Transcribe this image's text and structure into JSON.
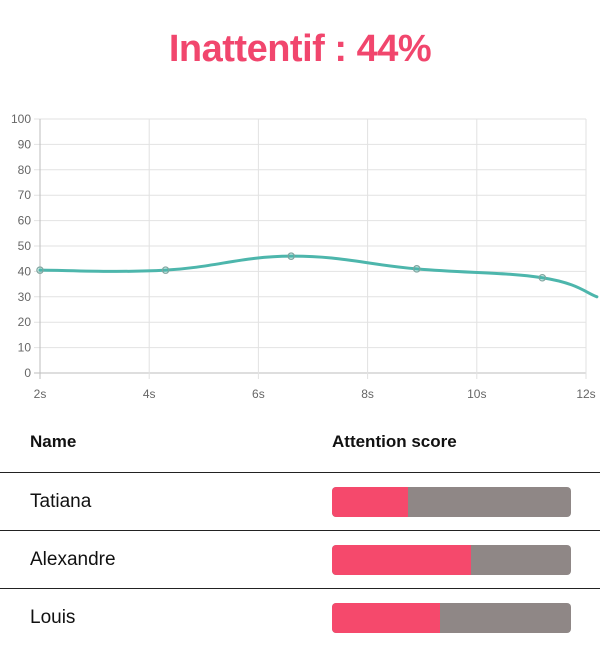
{
  "headline": "Inattentif : 44%",
  "colors": {
    "accent": "#f1466d",
    "line": "#4db6ac",
    "bar_fill": "#f5496c",
    "bar_track": "#8f8786"
  },
  "chart_data": {
    "type": "line",
    "x_ticks": [
      "2s",
      "4s",
      "6s",
      "8s",
      "10s",
      "12s"
    ],
    "y_ticks": [
      "0",
      "10",
      "20",
      "30",
      "40",
      "50",
      "60",
      "70",
      "80",
      "90",
      "100"
    ],
    "ylim": [
      0,
      100
    ],
    "xlim": [
      2,
      12
    ],
    "grid": true,
    "legend": false,
    "series": [
      {
        "x": [
          2,
          4.3,
          6.6,
          8.9,
          11.2,
          12.2
        ],
        "y": [
          40.5,
          40.5,
          46,
          41,
          37.5,
          30
        ],
        "point_markers": [
          true,
          true,
          true,
          true,
          true,
          false
        ]
      }
    ]
  },
  "table": {
    "headers": {
      "name": "Name",
      "score": "Attention score"
    },
    "rows": [
      {
        "name": "Tatiana",
        "score": 0.32
      },
      {
        "name": "Alexandre",
        "score": 0.58
      },
      {
        "name": "Louis",
        "score": 0.45
      }
    ]
  }
}
